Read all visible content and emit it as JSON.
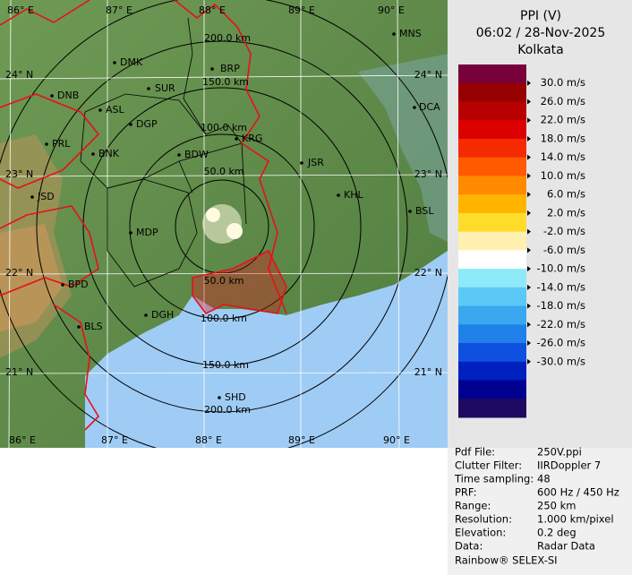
{
  "header": {
    "product": "PPI (V)",
    "time": "06:02 / 28-Nov-2025",
    "site": "Kolkata"
  },
  "legend": {
    "labels": [
      "30.0 m/s",
      "26.0 m/s",
      "22.0 m/s",
      "18.0 m/s",
      "14.0 m/s",
      "10.0 m/s",
      "6.0 m/s",
      "2.0 m/s",
      "-2.0 m/s",
      "-6.0 m/s",
      "-10.0 m/s",
      "-14.0 m/s",
      "-18.0 m/s",
      "-22.0 m/s",
      "-26.0 m/s",
      "-30.0 m/s"
    ],
    "colors": [
      "#78003c",
      "#960000",
      "#b80000",
      "#dc0000",
      "#f52a00",
      "#ff5a00",
      "#ff8a00",
      "#ffb400",
      "#ffdc2a",
      "#fff0b0",
      "#ffffff",
      "#8eeaf8",
      "#5cc8f5",
      "#3aa8f0",
      "#2080ea",
      "#1050e0",
      "#0020c0",
      "#000090",
      "#1e0a60"
    ]
  },
  "map": {
    "lon_labels": [
      "86° E",
      "87° E",
      "88° E",
      "89° E",
      "90° E"
    ],
    "lat_labels": [
      "24° N",
      "23° N",
      "22° N",
      "21° N"
    ],
    "ring_labels": [
      "50.0 km",
      "100.0 km",
      "150.0 km",
      "200.0 km"
    ],
    "cities": [
      "MNS",
      "DMK",
      "BRP",
      "SUR",
      "DNB",
      "ASL",
      "DCA",
      "DGP",
      "PRL",
      "BNK",
      "KRG",
      "BDW",
      "JSR",
      "JSD",
      "KHL",
      "BSL",
      "MDP",
      "BPD",
      "DGH",
      "BLS",
      "SHD"
    ]
  },
  "info": {
    "rows": [
      [
        "Pdf File:",
        "250V.ppi"
      ],
      [
        "Clutter Filter:",
        "IIRDoppler 7"
      ],
      [
        "Time sampling:",
        "48"
      ],
      [
        "PRF:",
        "600 Hz / 450 Hz"
      ],
      [
        "Range:",
        "250 km"
      ],
      [
        "Resolution:",
        "1.000 km/pixel"
      ],
      [
        "Elevation:",
        "0.2 deg"
      ],
      [
        "Data:",
        "Radar Data"
      ]
    ],
    "footer": "Rainbow® SELEX-SI"
  }
}
